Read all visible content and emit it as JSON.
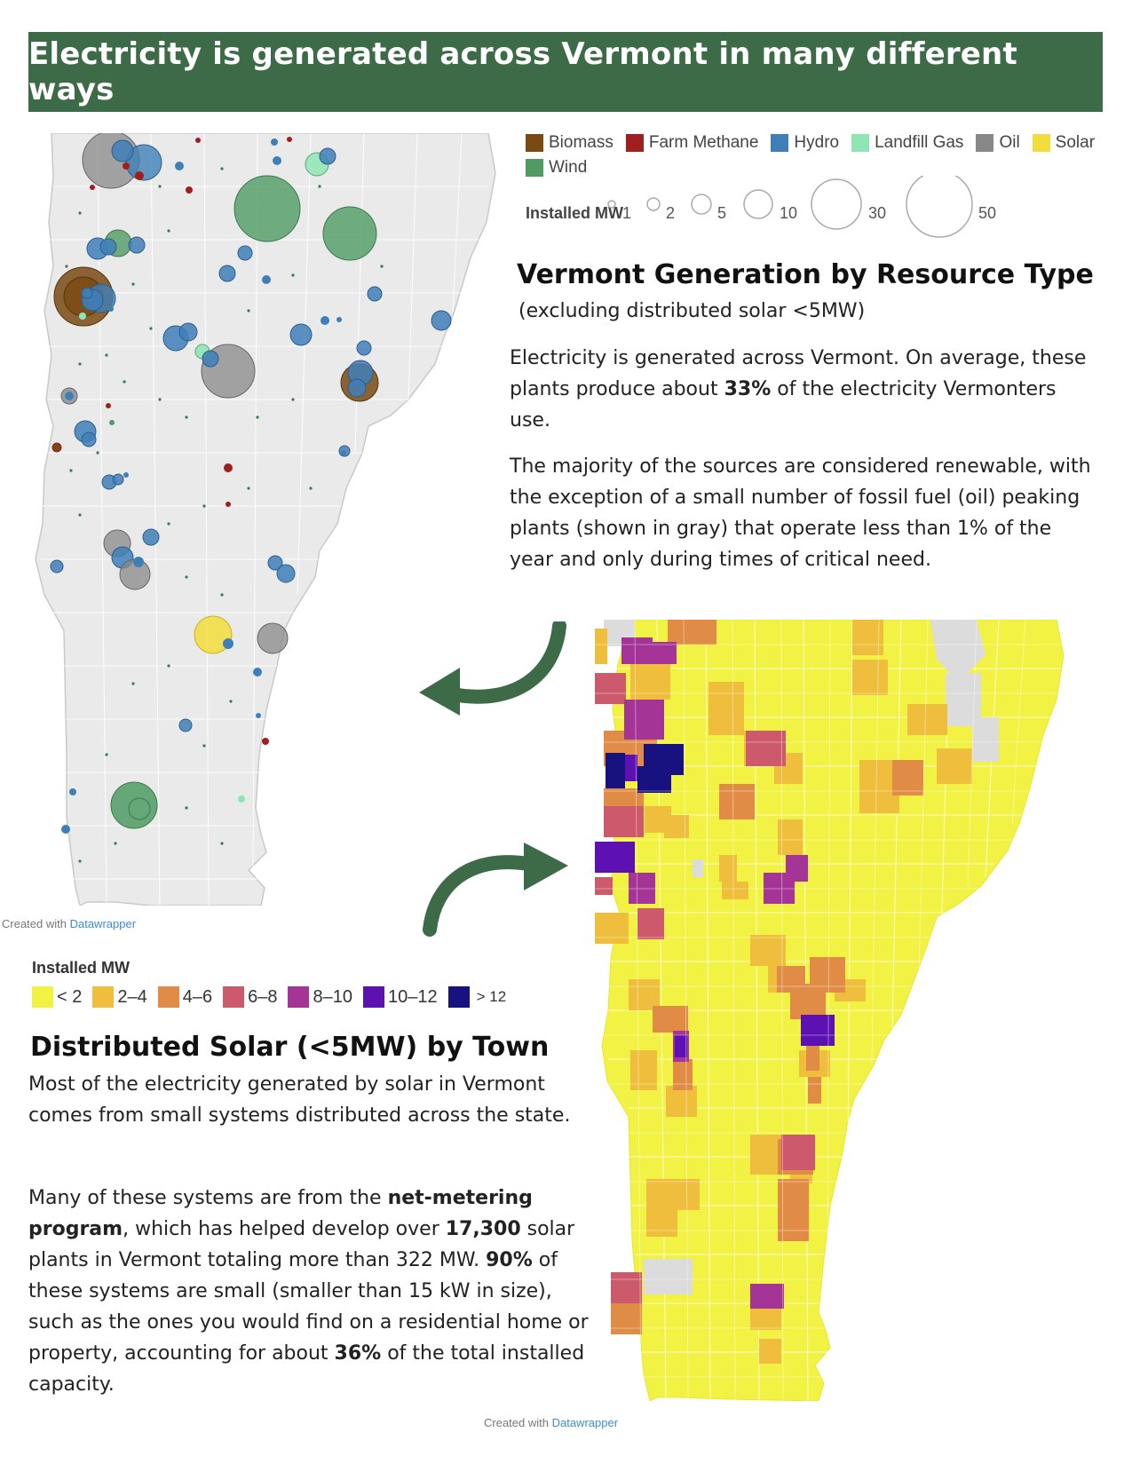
{
  "banner": {
    "title": "Electricity is generated across Vermont in many different ways"
  },
  "top": {
    "legend": {
      "categories": [
        {
          "name": "Biomass",
          "color": "#7a4a13"
        },
        {
          "name": "Farm Methane",
          "color": "#a01e1e"
        },
        {
          "name": "Hydro",
          "color": "#3f7fb8"
        },
        {
          "name": "Landfill Gas",
          "color": "#8fe6b4"
        },
        {
          "name": "Oil",
          "color": "#888888"
        },
        {
          "name": "Solar",
          "color": "#f2dd3c"
        },
        {
          "name": "Wind",
          "color": "#4f9b63"
        }
      ],
      "size_title": "Installed MW",
      "sizes": [
        "1",
        "2",
        "5",
        "10",
        "30",
        "50"
      ]
    },
    "title": "Vermont Generation by Resource Type",
    "subtitle": "(excluding distributed solar <5MW)",
    "p1": {
      "a": "Electricity is generated across Vermont. On average, these plants produce about ",
      "b": "33%",
      "c": " of the electricity Vermonters use."
    },
    "p2": "The majority of the sources are considered renewable, with the exception of a small number of fossil fuel (oil) peaking plants (shown in gray) that operate less than 1% of the year and only during times of critical need.",
    "credit": {
      "pre": "Created with ",
      "brand": "Datawrapper"
    }
  },
  "bottom": {
    "legend": {
      "title": "Installed MW",
      "bins": [
        {
          "label": "< 2",
          "color": "#f2f244"
        },
        {
          "label": "2–4",
          "color": "#efbe3c"
        },
        {
          "label": "4–6",
          "color": "#e08c46"
        },
        {
          "label": "6–8",
          "color": "#cc5a6c"
        },
        {
          "label": "8–10",
          "color": "#a53497"
        },
        {
          "label": "10–12",
          "color": "#5e11b2"
        },
        {
          "label": "> 12",
          "color": "#17127f"
        }
      ],
      "no_data_color": "#dcdcdc"
    },
    "title": "Distributed Solar (<5MW) by Town",
    "p1": "Most of the electricity generated by solar in Vermont comes from small systems distributed across the state.",
    "p2": {
      "a": "Many of these systems are from the ",
      "b": "net-metering program",
      "c": ", which has helped develop over ",
      "d": "17,300",
      "e": " solar plants in Vermont totaling more than 322 MW. ",
      "f": "90%",
      "g": " of these systems are small (smaller than 15 kW in size), such as the ones you would find on a residential home or property, accounting for about ",
      "h": "36%",
      "i": " of the total installed capacity."
    },
    "credit": {
      "pre": "Created with ",
      "brand": "Datawrapper"
    }
  }
}
